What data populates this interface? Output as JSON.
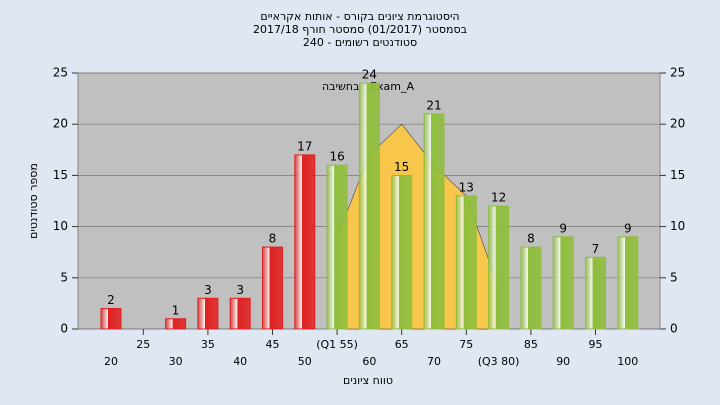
{
  "chart_data": {
    "type": "bar",
    "title": "היסטוגרמת ציונים בקורס - אותות אקראיים",
    "subtitle": [
      "בסמסטר  (01/2017)  סמסטר חורף 2017/18",
      "סטודנטים רשומים - 240"
    ],
    "annotation": "בחשיבה : Exam_A",
    "x_label": "טווח ציונים",
    "y_label": "מספר סטודנטים",
    "categories": [
      "20",
      "25",
      "30",
      "35",
      "40",
      "45",
      "50",
      "(Q1 55)",
      "60",
      "65",
      "70",
      "75",
      "(Q3 80)",
      "85",
      "90",
      "95",
      "100"
    ],
    "values": [
      2,
      null,
      1,
      3,
      3,
      8,
      17,
      16,
      24,
      15,
      21,
      13,
      12,
      8,
      9,
      7,
      9
    ],
    "colors": [
      "#e02020",
      "#e02020",
      "#e02020",
      "#e02020",
      "#e02020",
      "#e02020",
      "#e02020",
      "#8fbe3c",
      "#8fbe3c",
      "#8fbe3c",
      "#8fbe3c",
      "#8fbe3c",
      "#8fbe3c",
      "#8fbe3c",
      "#8fbe3c",
      "#8fbe3c",
      "#8fbe3c"
    ],
    "curve": {
      "color": "#f7c64a",
      "values": [
        null,
        null,
        null,
        null,
        null,
        null,
        null,
        9,
        17,
        20,
        16,
        13,
        4,
        null,
        null,
        null,
        null
      ]
    },
    "ylim": [
      0,
      25
    ],
    "yticks": [
      0,
      5,
      10,
      15,
      20,
      25
    ],
    "y2lim": [
      0,
      25
    ],
    "y2ticks": [
      0,
      5,
      10,
      15,
      20,
      25
    ],
    "grid": true
  }
}
